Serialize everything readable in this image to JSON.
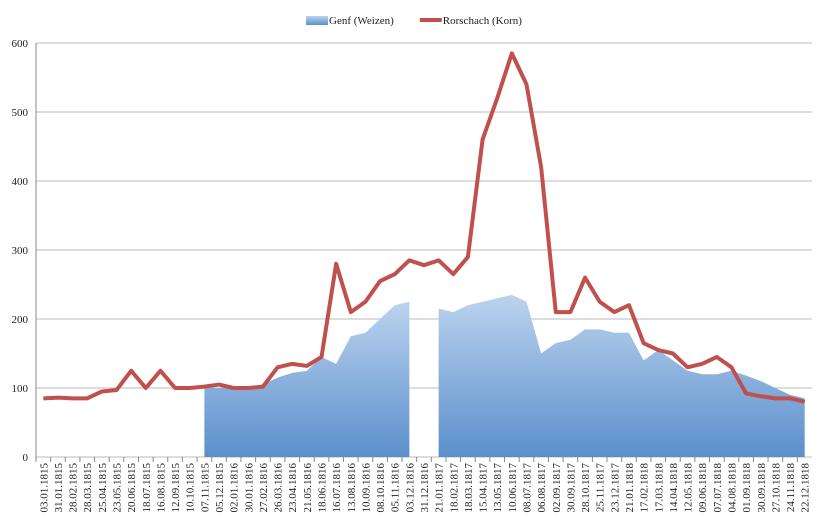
{
  "chart_data": {
    "type": "area-line",
    "categories": [
      "03.01.1815",
      "31.01.1815",
      "28.02.1815",
      "28.03.1815",
      "25.04.1815",
      "23.05.1815",
      "20.06.1815",
      "18.07.1815",
      "16.08.1815",
      "12.09.1815",
      "10.10.1815",
      "07.11.1815",
      "05.12.1815",
      "02.01.1816",
      "30.01.1816",
      "27.02.1816",
      "26.03.1816",
      "23.04.1816",
      "21.05.1816",
      "18.06.1816",
      "16.07.1816",
      "13.08.1816",
      "10.09.1816",
      "08.10.1816",
      "05.11.1816",
      "03.12.1816",
      "31.12.1816",
      "21.01.1817",
      "18.02.1817",
      "18.03.1817",
      "15.04.1817",
      "13.05.1817",
      "10.06.1817",
      "08.07.1817",
      "06.08.1817",
      "02.09.1817",
      "30.09.1817",
      "28.10.1817",
      "25.11.1817",
      "23.12.1817",
      "21.01.1818",
      "17.02.1818",
      "17.03.1818",
      "14.04.1818",
      "12.05.1818",
      "09.06.1818",
      "07.07.1818",
      "04.08.1818",
      "01.09.1818",
      "30.09.1818",
      "27.10.1818",
      "24.11.1818",
      "22.12.1818"
    ],
    "series": [
      {
        "name": "Genf (Weizen)",
        "kind": "area",
        "color": "#5b8fcc",
        "values": [
          null,
          null,
          null,
          null,
          null,
          null,
          null,
          null,
          null,
          null,
          null,
          100,
          100,
          100,
          100,
          105,
          115,
          122,
          125,
          145,
          135,
          175,
          180,
          200,
          220,
          225,
          null,
          215,
          210,
          220,
          225,
          230,
          235,
          225,
          150,
          165,
          170,
          185,
          185,
          180,
          180,
          140,
          155,
          140,
          125,
          120,
          120,
          125,
          118,
          110,
          100,
          90,
          85
        ]
      },
      {
        "name": "Rorschach (Korn)",
        "kind": "line",
        "color": "#c0504d",
        "values": [
          85,
          86,
          85,
          85,
          95,
          97,
          125,
          100,
          125,
          100,
          100,
          102,
          105,
          100,
          100,
          102,
          130,
          135,
          132,
          145,
          280,
          210,
          225,
          255,
          265,
          285,
          278,
          285,
          265,
          290,
          460,
          520,
          585,
          540,
          420,
          210,
          210,
          260,
          225,
          210,
          220,
          165,
          155,
          150,
          130,
          135,
          145,
          130,
          92,
          88,
          85,
          85,
          80
        ]
      }
    ],
    "ylim": [
      0,
      600
    ],
    "yticks": [
      0,
      100,
      200,
      300,
      400,
      500,
      600
    ],
    "grid": true,
    "legend": "top"
  }
}
